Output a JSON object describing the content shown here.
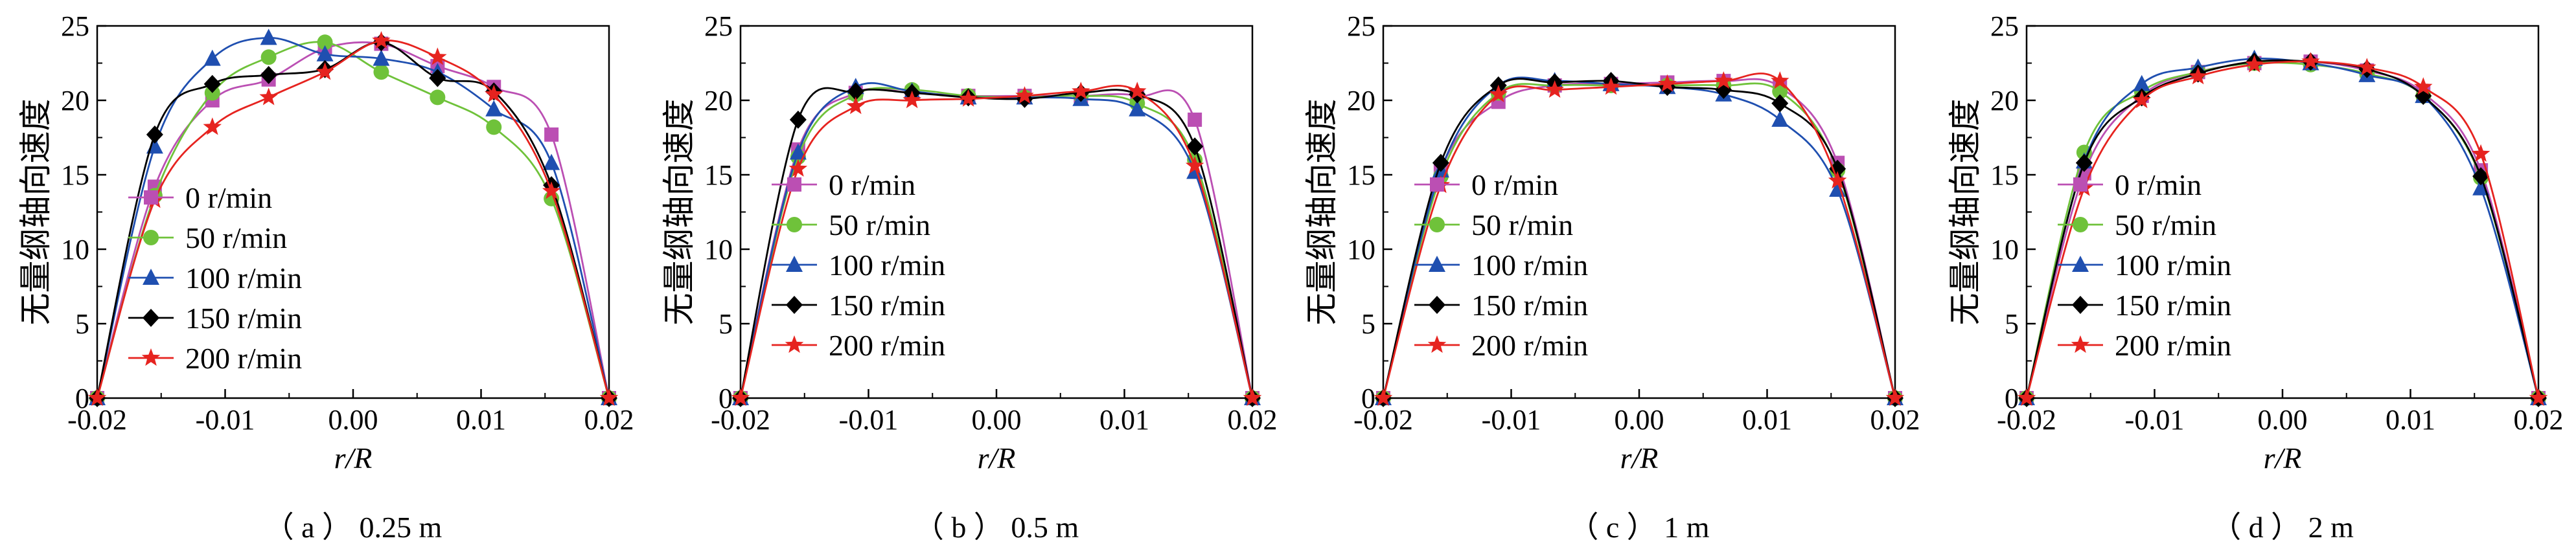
{
  "chart_data": [
    {
      "type": "line",
      "caption": "（ a ） 0.25 m",
      "xlabel": "r/R",
      "ylabel": "无量纲轴向速度",
      "xlim": [
        -0.02,
        0.02
      ],
      "ylim": [
        0,
        25
      ],
      "xticks": [
        "-0.02",
        "-0.01",
        "0.00",
        "0.01",
        "0.02"
      ],
      "yticks": [
        "0",
        "5",
        "10",
        "15",
        "20",
        "25"
      ],
      "legend_position": "center-left",
      "x": [
        -0.02,
        -0.0155,
        -0.011,
        -0.0066,
        -0.0022,
        0.0022,
        0.0066,
        0.011,
        0.0155,
        0.02
      ],
      "series": [
        {
          "name": "0 r/min",
          "values": [
            0,
            14.2,
            20.0,
            21.4,
            23.5,
            23.8,
            22.3,
            20.9,
            17.7,
            0
          ]
        },
        {
          "name": "50 r/min",
          "values": [
            0,
            13.6,
            20.5,
            22.9,
            23.9,
            21.9,
            20.2,
            18.2,
            13.4,
            0
          ]
        },
        {
          "name": "100 r/min",
          "values": [
            0,
            16.9,
            22.8,
            24.2,
            23.1,
            22.8,
            21.9,
            19.4,
            15.8,
            0
          ]
        },
        {
          "name": "150 r/min",
          "values": [
            0,
            17.7,
            21.1,
            21.7,
            22.1,
            23.9,
            21.5,
            20.6,
            14.3,
            0
          ]
        },
        {
          "name": "200 r/min",
          "values": [
            0,
            13.3,
            18.2,
            20.2,
            21.9,
            24.0,
            22.9,
            20.4,
            13.9,
            0
          ]
        }
      ]
    },
    {
      "type": "line",
      "caption": "（ b ） 0.5 m",
      "xlabel": "r/R",
      "ylabel": "无量纲轴向速度",
      "xlim": [
        -0.02,
        0.02
      ],
      "ylim": [
        0,
        25
      ],
      "xticks": [
        "-0.02",
        "-0.01",
        "0.00",
        "0.01",
        "0.02"
      ],
      "yticks": [
        "0",
        "5",
        "10",
        "15",
        "20",
        "25"
      ],
      "legend_position": "center-left",
      "x": [
        -0.02,
        -0.0155,
        -0.011,
        -0.0066,
        -0.0022,
        0.0022,
        0.0066,
        0.011,
        0.0155,
        0.02
      ],
      "series": [
        {
          "name": "0 r/min",
          "values": [
            0,
            16.7,
            20.5,
            20.5,
            20.3,
            20.3,
            20.3,
            20.3,
            18.7,
            0
          ]
        },
        {
          "name": "50 r/min",
          "values": [
            0,
            16.2,
            20.4,
            20.7,
            20.3,
            20.2,
            20.3,
            19.8,
            16.0,
            0
          ]
        },
        {
          "name": "100 r/min",
          "values": [
            0,
            16.5,
            20.9,
            20.6,
            20.2,
            20.2,
            20.1,
            19.4,
            15.2,
            0
          ]
        },
        {
          "name": "150 r/min",
          "values": [
            0,
            18.7,
            20.6,
            20.5,
            20.2,
            20.1,
            20.5,
            20.4,
            16.9,
            0
          ]
        },
        {
          "name": "200 r/min",
          "values": [
            0,
            15.4,
            19.6,
            20.0,
            20.1,
            20.3,
            20.6,
            20.6,
            15.6,
            0
          ]
        }
      ]
    },
    {
      "type": "line",
      "caption": "（ c ） 1 m",
      "xlabel": "r/R",
      "ylabel": "无量纲轴向速度",
      "xlim": [
        -0.02,
        0.02
      ],
      "ylim": [
        0,
        25
      ],
      "xticks": [
        "-0.02",
        "-0.01",
        "0.00",
        "0.01",
        "0.02"
      ],
      "yticks": [
        "0",
        "5",
        "10",
        "15",
        "20",
        "25"
      ],
      "legend_position": "center-left",
      "x": [
        -0.02,
        -0.0155,
        -0.011,
        -0.0066,
        -0.0022,
        0.0022,
        0.0066,
        0.011,
        0.0155,
        0.02
      ],
      "series": [
        {
          "name": "0 r/min",
          "values": [
            0,
            15.3,
            19.9,
            21.0,
            21.1,
            21.2,
            21.3,
            20.9,
            15.8,
            0
          ]
        },
        {
          "name": "50 r/min",
          "values": [
            0,
            14.9,
            20.5,
            21.0,
            21.0,
            21.0,
            21.0,
            20.6,
            15.3,
            0
          ]
        },
        {
          "name": "100 r/min",
          "values": [
            0,
            15.3,
            21.0,
            21.3,
            21.1,
            20.9,
            20.4,
            18.7,
            14.0,
            0
          ]
        },
        {
          "name": "150 r/min",
          "values": [
            0,
            15.8,
            21.0,
            21.2,
            21.3,
            20.9,
            20.7,
            19.8,
            15.4,
            0
          ]
        },
        {
          "name": "200 r/min",
          "values": [
            0,
            14.3,
            20.4,
            20.7,
            20.9,
            21.1,
            21.3,
            21.3,
            14.6,
            0
          ]
        }
      ]
    },
    {
      "type": "line",
      "caption": "（ d ） 2 m",
      "xlabel": "r/R",
      "ylabel": "无量纲轴向速度",
      "xlim": [
        -0.02,
        0.02
      ],
      "ylim": [
        0,
        25
      ],
      "xticks": [
        "-0.02",
        "-0.01",
        "0.00",
        "0.01",
        "0.02"
      ],
      "yticks": [
        "0",
        "5",
        "10",
        "15",
        "20",
        "25"
      ],
      "legend_position": "center-left",
      "x": [
        -0.02,
        -0.0155,
        -0.011,
        -0.0066,
        -0.0022,
        0.0022,
        0.0066,
        0.011,
        0.0155,
        0.02
      ],
      "series": [
        {
          "name": "0 r/min",
          "values": [
            0,
            15.1,
            20.3,
            21.9,
            22.5,
            22.6,
            22.0,
            20.5,
            15.3,
            0
          ]
        },
        {
          "name": "50 r/min",
          "values": [
            0,
            16.5,
            20.6,
            21.9,
            22.5,
            22.4,
            21.8,
            20.3,
            14.8,
            0
          ]
        },
        {
          "name": "100 r/min",
          "values": [
            0,
            15.9,
            21.1,
            22.2,
            22.8,
            22.5,
            21.7,
            20.3,
            14.1,
            0
          ]
        },
        {
          "name": "150 r/min",
          "values": [
            0,
            15.8,
            20.2,
            21.8,
            22.6,
            22.6,
            22.1,
            20.3,
            14.9,
            0
          ]
        },
        {
          "name": "200 r/min",
          "values": [
            0,
            14.1,
            20.0,
            21.6,
            22.4,
            22.6,
            22.2,
            20.9,
            16.4,
            0
          ]
        }
      ]
    }
  ],
  "series_style": [
    {
      "color": "#bb4fb3",
      "marker": "square"
    },
    {
      "color": "#6fc23a",
      "marker": "circle"
    },
    {
      "color": "#1f4fb0",
      "marker": "triangle"
    },
    {
      "color": "#000000",
      "marker": "diamond"
    },
    {
      "color": "#e6231f",
      "marker": "star"
    }
  ]
}
